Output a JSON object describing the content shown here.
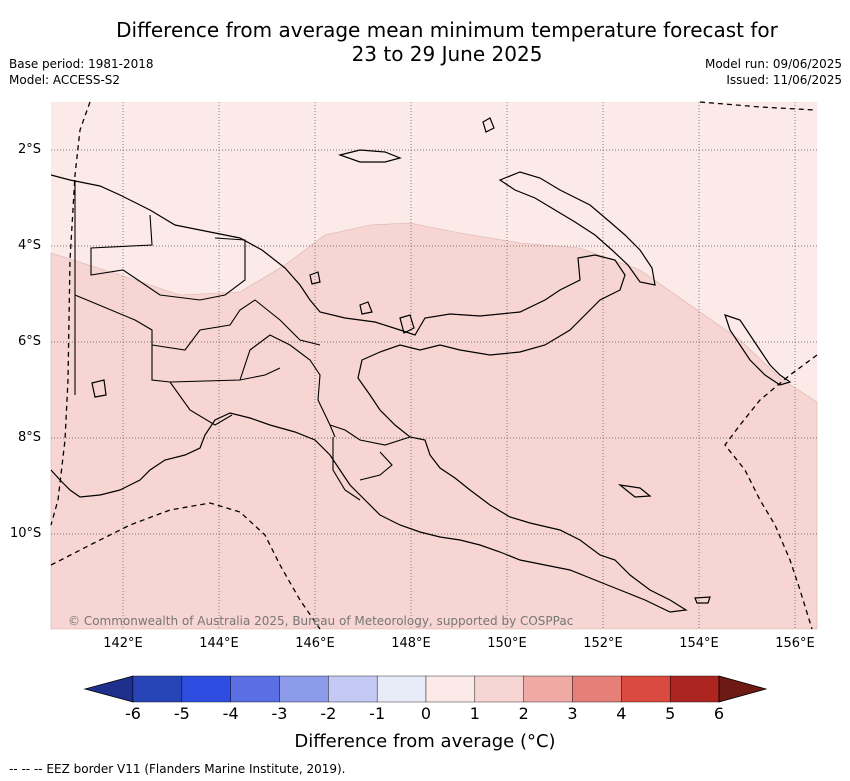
{
  "title_line1": "Difference from average mean minimum temperature forecast for",
  "title_line2": "23 to 29 June 2025",
  "base_period": "Base period: 1981-2018",
  "model": "Model: ACCESS-S2",
  "model_run": "Model run: 09/06/2025",
  "issued": "Issued: 11/06/2025",
  "copyright": "© Commonwealth of Australia 2025, Bureau of Meteorology, supported by COSPPac",
  "colorbar_label": "Difference from average (°C)",
  "footnote": "--  --  -- EEZ border V11 (Flanders Marine Institute, 2019).",
  "lat_labels": [
    "2°S",
    "4°S",
    "6°S",
    "8°S",
    "10°S"
  ],
  "lon_labels": [
    "142°E",
    "144°E",
    "146°E",
    "148°E",
    "150°E",
    "152°E",
    "154°E",
    "156°E"
  ],
  "colorbar": {
    "ticks": [
      "-6",
      "-5",
      "-4",
      "-3",
      "-2",
      "-1",
      "0",
      "1",
      "2",
      "3",
      "4",
      "5",
      "6"
    ],
    "colors": [
      "#1e2f8c",
      "#2845b8",
      "#2e4de0",
      "#5a6fe4",
      "#8c9cea",
      "#c3c9f2",
      "#e8ebf8",
      "#fceae8",
      "#f6d5d2",
      "#efaaa5",
      "#e57f77",
      "#db4a3e",
      "#ad2520",
      "#6e1a14"
    ]
  },
  "map_colors": {
    "bin_0_to_1": "#fceae8",
    "bin_1_to_2": "#f6d5d2"
  }
}
